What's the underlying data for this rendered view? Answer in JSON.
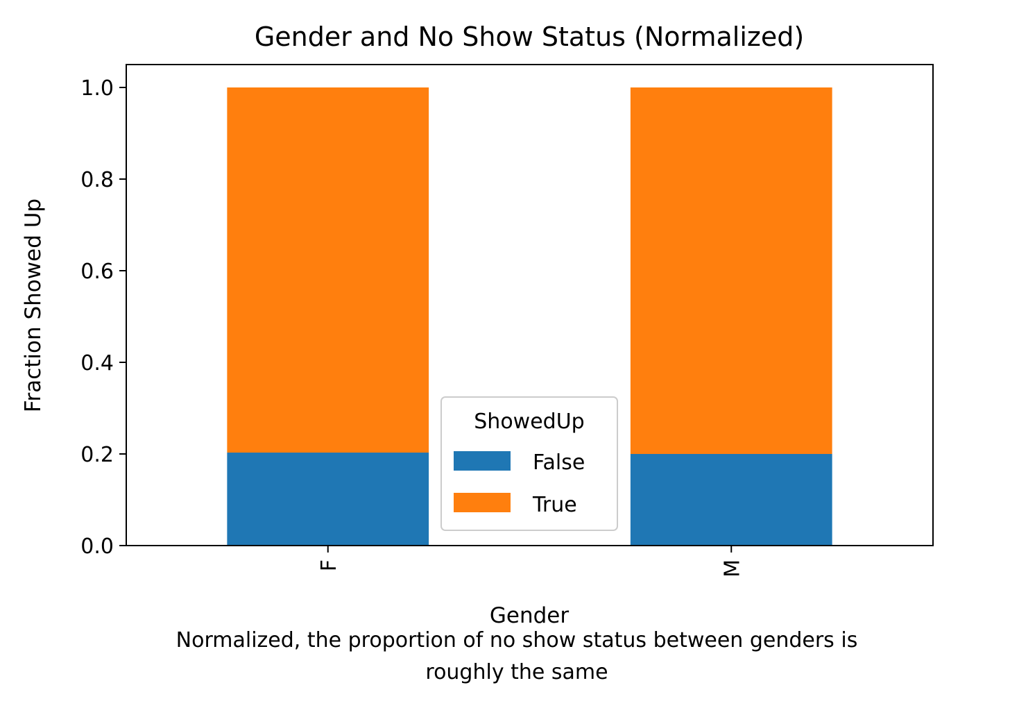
{
  "chart_data": {
    "type": "bar",
    "stacked": true,
    "title": "Gender and No Show Status (Normalized)",
    "xlabel": "Gender",
    "ylabel": "Fraction Showed Up",
    "caption_lines": [
      "Normalized, the proportion of no show status between genders is",
      "roughly the same"
    ],
    "categories": [
      "F",
      "M"
    ],
    "series": [
      {
        "name": "False",
        "color": "#1f77b4",
        "values": [
          0.203,
          0.2
        ]
      },
      {
        "name": "True",
        "color": "#ff7f0e",
        "values": [
          0.797,
          0.8
        ]
      }
    ],
    "ylim": [
      0,
      1.05
    ],
    "yticks": [
      "0.0",
      "0.2",
      "0.4",
      "0.6",
      "0.8",
      "1.0"
    ],
    "legend": {
      "title": "ShowedUp",
      "placement": "lower center"
    },
    "grid": false
  }
}
